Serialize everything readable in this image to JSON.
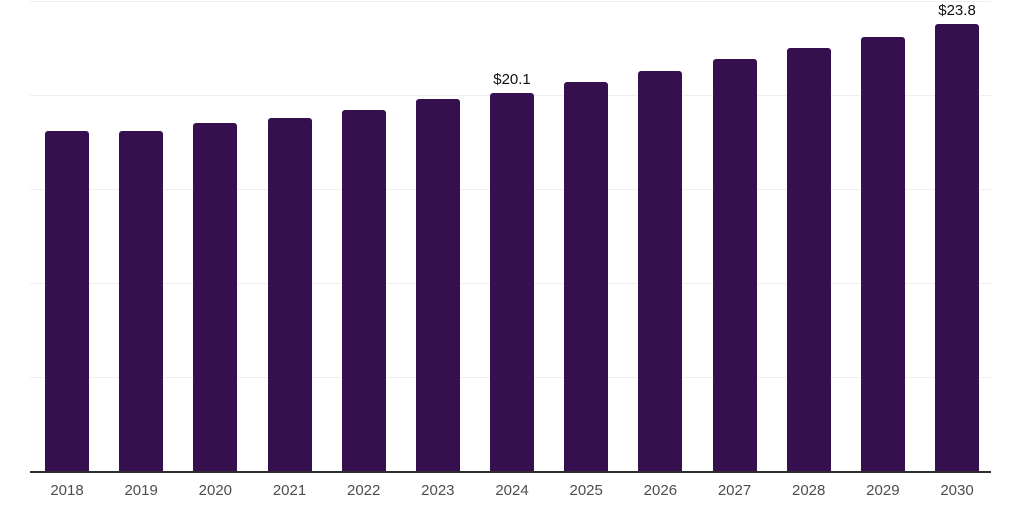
{
  "chart_data": {
    "type": "bar",
    "title": "",
    "xlabel": "",
    "ylabel": "",
    "categories": [
      "2018",
      "2019",
      "2020",
      "2021",
      "2022",
      "2023",
      "2024",
      "2025",
      "2026",
      "2027",
      "2028",
      "2029",
      "2030"
    ],
    "values": [
      18.1,
      18.1,
      18.5,
      18.8,
      19.2,
      19.8,
      20.1,
      20.7,
      21.3,
      21.9,
      22.5,
      23.1,
      23.8
    ],
    "data_labels": [
      {
        "category": "2024",
        "text": "$20.1"
      },
      {
        "category": "2030",
        "text": "$23.8"
      }
    ],
    "ylim": [
      0,
      25
    ],
    "gridline_values": [
      5,
      10,
      15,
      20,
      25
    ],
    "grid": "horizontal",
    "legend_position": "none",
    "y_axis_tick_labels_visible": false
  },
  "colors": {
    "background": "#FFFFFF",
    "bar": "#36104E",
    "gridline": "#EFEFEF",
    "axis_line": "#2E2E2E",
    "tick_label": "#4D4D4D",
    "data_label": "#111111"
  }
}
